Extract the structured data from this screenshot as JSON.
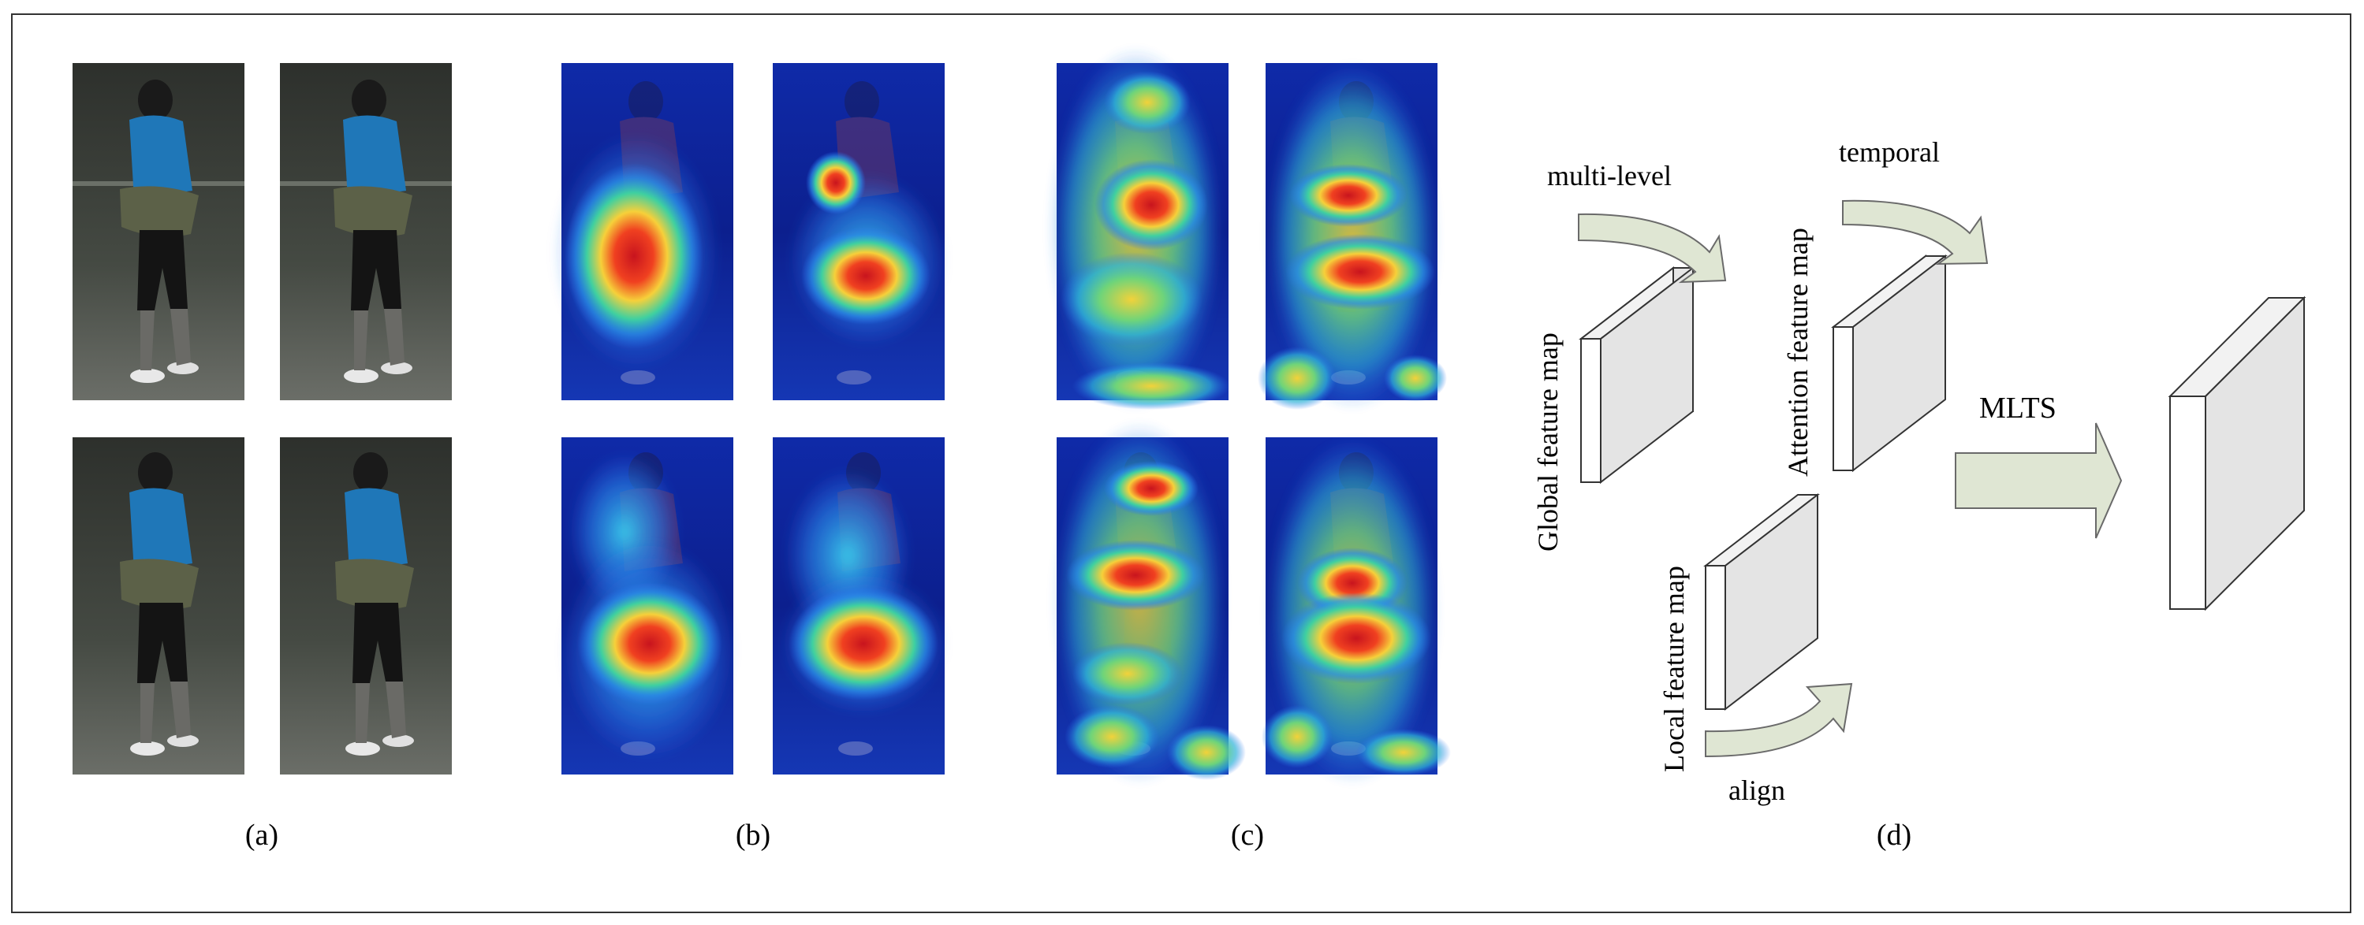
{
  "panels": {
    "a": {
      "caption": "(a)"
    },
    "b": {
      "caption": "(b)"
    },
    "c": {
      "caption": "(c)"
    },
    "d": {
      "caption": "(d)"
    }
  },
  "diagram": {
    "global_label": "Global feature map",
    "attention_label": "Attention feature map",
    "local_label": "Local feature map",
    "multi_level_label": "multi-level",
    "temporal_label": "temporal",
    "align_label": "align",
    "mlts_label": "MLTS"
  },
  "colors": {
    "frame": "#333333",
    "arrow_fill": "#dfe6d3",
    "arrow_stroke": "#6a6a6a",
    "box_front": "#ffffff",
    "box_side": "#e6e6e6",
    "heat_bg": "#10239c",
    "photo_bg": "#3a3d3a",
    "shirt": "#1f77b8"
  },
  "icons": [
    "curved-arrow-icon",
    "block-arrow-icon"
  ]
}
